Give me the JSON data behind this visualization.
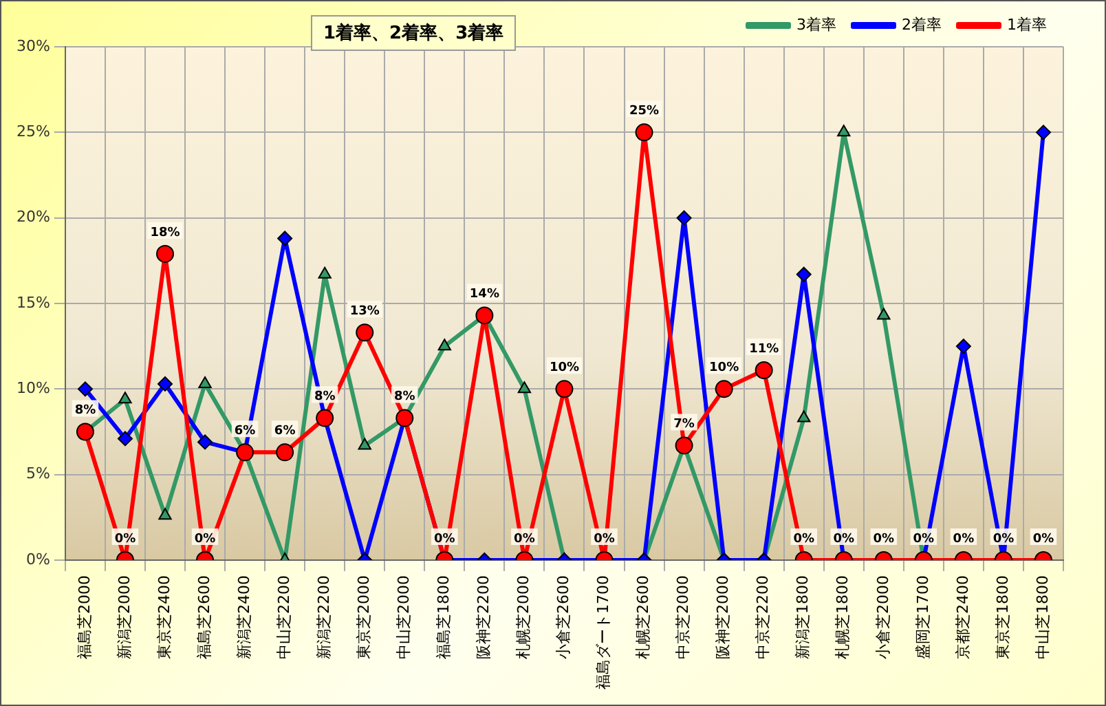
{
  "chart_data": {
    "type": "line",
    "title": "1着率、2着率、3着率",
    "categories": [
      "福島芝2000",
      "新潟芝2000",
      "東京芝2400",
      "福島芝2600",
      "新潟芝2400",
      "中山芝2200",
      "新潟芝2200",
      "東京芝2000",
      "中山芝2000",
      "福島芝1800",
      "阪神芝2200",
      "札幌芝2000",
      "小倉芝2600",
      "福島ダート1700",
      "札幌芝2600",
      "中京芝2000",
      "阪神芝2000",
      "中京芝2200",
      "新潟芝1800",
      "札幌芝1800",
      "小倉芝2000",
      "盛岡芝1700",
      "京都芝2400",
      "東京芝1800",
      "中山芝1800"
    ],
    "series": [
      {
        "name": "1着率",
        "color": "#ff0000",
        "marker": "circle",
        "values": [
          7.5,
          0,
          17.9,
          0,
          6.3,
          6.3,
          8.3,
          13.3,
          8.3,
          0,
          14.3,
          0,
          10,
          0,
          25,
          6.7,
          10,
          11.1,
          0,
          0,
          0,
          0,
          0,
          0,
          0
        ],
        "value_labels": [
          "8%",
          "0%",
          "18%",
          "0%",
          "6%",
          "6%",
          "8%",
          "13%",
          "8%",
          "0%",
          "14%",
          "0%",
          "10%",
          "0%",
          "25%",
          "7%",
          "10%",
          "11%",
          "0%",
          "0%",
          "0%",
          "0%",
          "0%",
          "0%",
          "0%"
        ]
      },
      {
        "name": "2着率",
        "color": "#0000ff",
        "marker": "diamond",
        "values": [
          10,
          7.1,
          10.3,
          6.9,
          6.3,
          18.8,
          8.3,
          0,
          8.3,
          0,
          0,
          0,
          0,
          0,
          0,
          20,
          0,
          0,
          16.7,
          0,
          0,
          0,
          12.5,
          0,
          25
        ]
      },
      {
        "name": "3着率",
        "color": "#339966",
        "marker": "triangle",
        "values": [
          7.5,
          9.4,
          2.6,
          10.3,
          6.3,
          0,
          16.7,
          6.7,
          8.3,
          12.5,
          14.3,
          10,
          0,
          0,
          0,
          6.7,
          0,
          0,
          8.3,
          25,
          14.3,
          0,
          0,
          null,
          null
        ]
      }
    ],
    "ylim": [
      0,
      30
    ],
    "yticks": [
      {
        "value": 0,
        "label": "0%"
      },
      {
        "value": 5,
        "label": "5%"
      },
      {
        "value": 10,
        "label": "10%"
      },
      {
        "value": 15,
        "label": "15%"
      },
      {
        "value": 20,
        "label": "20%"
      },
      {
        "value": 25,
        "label": "25%"
      },
      {
        "value": 30,
        "label": "30%"
      }
    ],
    "grid": true,
    "legend": "top right",
    "line_style": "solid"
  }
}
